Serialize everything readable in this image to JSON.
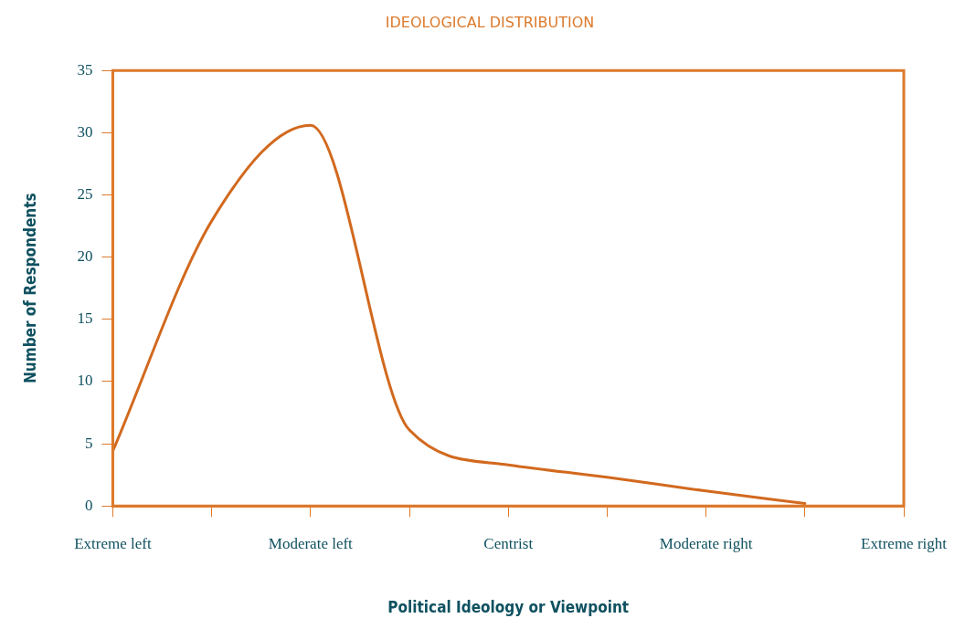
{
  "chart_data": {
    "type": "line",
    "title": "IDEOLOGICAL DISTRIBUTION",
    "xlabel": "Political Ideology or Viewpoint",
    "ylabel": "Number of Respondents",
    "categories": [
      "Extreme left",
      null,
      "Moderate left",
      null,
      "Centrist",
      null,
      "Moderate right",
      null,
      "Extreme right"
    ],
    "series": [
      {
        "color": "#d2691e",
        "values": [
          4.4,
          22.9,
          30.6,
          6.1,
          3.3,
          2.3,
          1.2,
          0.2,
          null
        ]
      }
    ],
    "ylim": [
      0,
      35
    ],
    "yticks": [
      0,
      5,
      10,
      15,
      20,
      25,
      30,
      35
    ],
    "grid": false,
    "legend": false,
    "marker": "none",
    "line_style": "solid"
  }
}
